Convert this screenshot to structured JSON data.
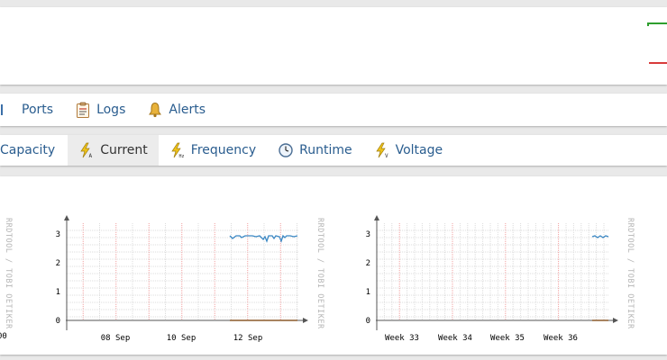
{
  "nav_primary": [
    {
      "label": "Ports",
      "icon": "network-port-icon"
    },
    {
      "label": "Logs",
      "icon": "clipboard-icon"
    },
    {
      "label": "Alerts",
      "icon": "bell-icon"
    }
  ],
  "nav_secondary": [
    {
      "label": "Capacity",
      "icon": "capacity-icon"
    },
    {
      "label": "Current",
      "icon": "current-lightning-icon",
      "active": true
    },
    {
      "label": "Frequency",
      "icon": "frequency-lightning-icon"
    },
    {
      "label": "Runtime",
      "icon": "clock-icon"
    },
    {
      "label": "Voltage",
      "icon": "voltage-lightning-icon"
    }
  ],
  "graphs": {
    "left_edge_watermark": "RRDTOOL / TOBI OETIKER",
    "left_cut_label": "00",
    "weekly": {
      "watermark": "RRDTOOL / TOBI OETIKER",
      "y_ticks": [
        "0",
        "1",
        "2",
        "3"
      ],
      "x_ticks": [
        "08 Sep",
        "10 Sep",
        "12 Sep"
      ]
    },
    "monthly": {
      "watermark": "RRDTOOL / TOBI OETIKER",
      "y_ticks": [
        "0",
        "1",
        "2",
        "3"
      ],
      "x_ticks": [
        "Week 33",
        "Week 34",
        "Week 35",
        "Week 36"
      ]
    }
  },
  "colors": {
    "link": "#2a5d8f",
    "line_blue": "#3b88c4",
    "line_brown": "#8b5a2b",
    "legend_green": "#2e9e2e",
    "legend_red": "#d83a3a"
  }
}
